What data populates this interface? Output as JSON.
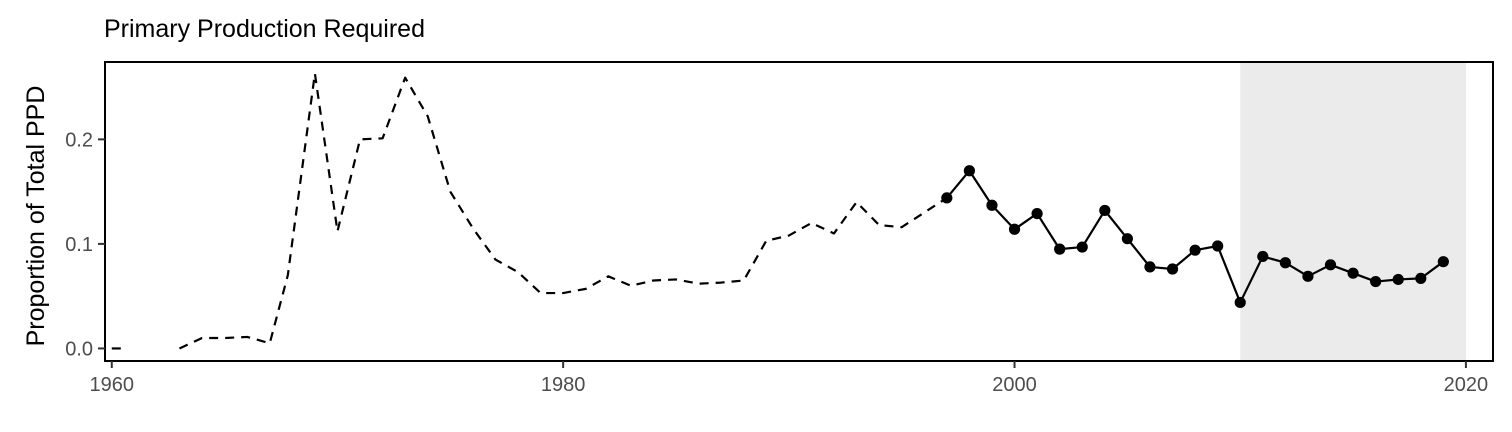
{
  "chart_data": {
    "type": "line",
    "title": "Primary Production Required",
    "ylabel": "Proportion of Total PPD",
    "xlabel": "",
    "xlim": [
      1959.7,
      2021.2
    ],
    "ylim": [
      -0.012,
      0.274
    ],
    "x_ticks": [
      1960,
      1980,
      2000,
      2020
    ],
    "x_tick_labels": [
      "1960",
      "1980",
      "2000",
      "2020"
    ],
    "y_ticks": [
      0.0,
      0.1,
      0.2
    ],
    "y_tick_labels": [
      "0.0",
      "0.1",
      "0.2"
    ],
    "grid": false,
    "shaded_region": {
      "x": [
        2010,
        2020
      ],
      "color": "#ebebeb"
    },
    "colors": {
      "line": "#000000",
      "panel_border": "#000000",
      "shade": "#ebebeb"
    },
    "series": [
      {
        "style": "dashed",
        "segments": [
          [
            [
              1960,
              0.0
            ],
            [
              1960.5,
              0.0
            ]
          ],
          [
            [
              1963,
              0.0
            ],
            [
              1964,
              0.01
            ],
            [
              1965,
              0.01
            ],
            [
              1966,
              0.011
            ],
            [
              1967,
              0.005
            ],
            [
              1967.8,
              0.07
            ],
            [
              1969,
              0.263
            ],
            [
              1970,
              0.112
            ],
            [
              1971,
              0.2
            ],
            [
              1972,
              0.201
            ],
            [
              1973,
              0.259
            ],
            [
              1974,
              0.222
            ],
            [
              1975,
              0.15
            ],
            [
              1976,
              0.115
            ],
            [
              1977,
              0.085
            ],
            [
              1978,
              0.073
            ],
            [
              1979,
              0.053
            ],
            [
              1980,
              0.053
            ],
            [
              1981,
              0.057
            ],
            [
              1982,
              0.069
            ],
            [
              1983,
              0.06
            ],
            [
              1984,
              0.065
            ],
            [
              1985,
              0.066
            ],
            [
              1986,
              0.062
            ],
            [
              1987,
              0.063
            ],
            [
              1988,
              0.065
            ],
            [
              1989,
              0.103
            ],
            [
              1990,
              0.108
            ],
            [
              1991,
              0.12
            ],
            [
              1992,
              0.11
            ],
            [
              1993,
              0.14
            ],
            [
              1994,
              0.118
            ],
            [
              1995,
              0.116
            ],
            [
              1996,
              0.13
            ],
            [
              1997,
              0.144
            ]
          ]
        ]
      },
      {
        "style": "solid-with-points",
        "x": [
          1997,
          1998,
          1999,
          2000,
          2001,
          2002,
          2003,
          2004,
          2005,
          2006,
          2007,
          2008,
          2009,
          2010,
          2011,
          2012,
          2013,
          2014,
          2015,
          2016,
          2017,
          2018,
          2019
        ],
        "values": [
          0.144,
          0.17,
          0.137,
          0.114,
          0.129,
          0.095,
          0.097,
          0.132,
          0.105,
          0.078,
          0.076,
          0.094,
          0.098,
          0.044,
          0.088,
          0.082,
          0.069,
          0.08,
          0.072,
          0.064,
          0.066,
          0.067,
          0.083
        ]
      }
    ]
  }
}
